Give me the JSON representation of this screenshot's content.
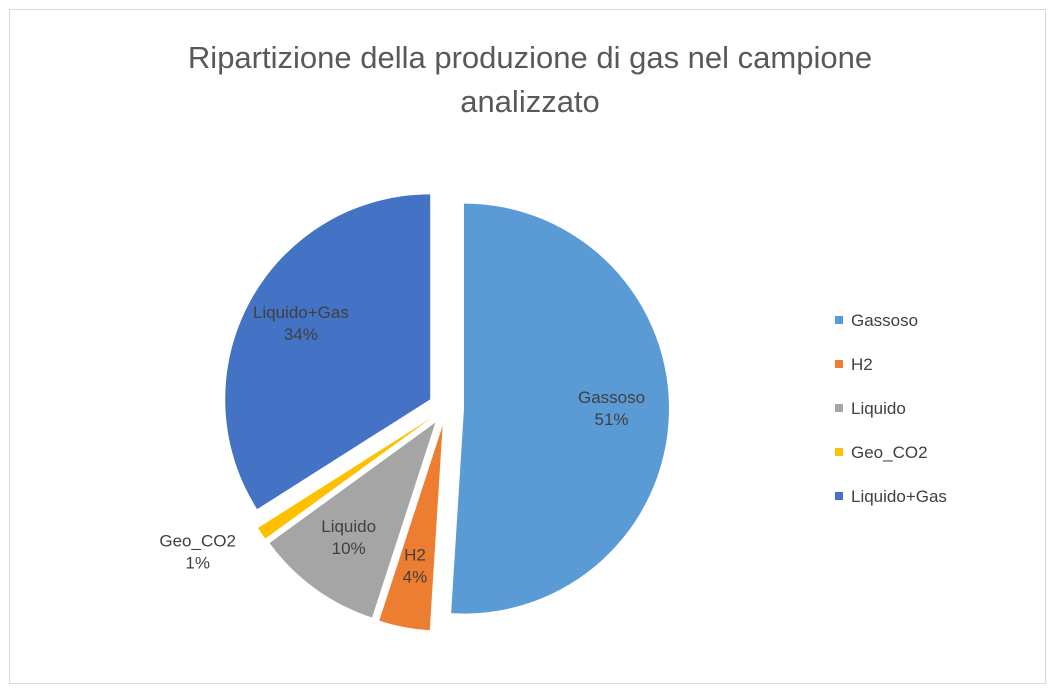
{
  "chart_data": {
    "type": "pie",
    "title": "Ripartizione della produzione di gas nel campione analizzato",
    "categories": [
      "Gassoso",
      "H2",
      "Liquido",
      "Geo_CO2",
      "Liquido+Gas"
    ],
    "values": [
      51,
      4,
      10,
      1,
      34
    ],
    "value_labels": [
      "51%",
      "4%",
      "10%",
      "1%",
      "34%"
    ],
    "colors": [
      "#5b9bd5",
      "#ed7d31",
      "#a5a5a5",
      "#ffc000",
      "#4472c4"
    ],
    "legend": "right"
  }
}
